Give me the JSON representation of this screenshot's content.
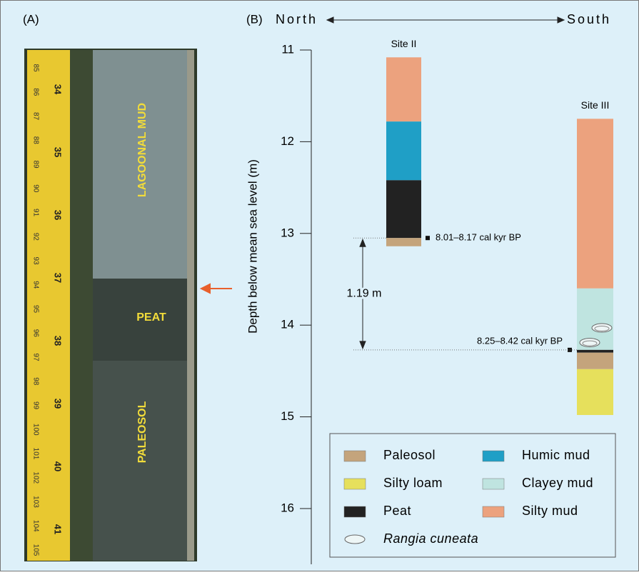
{
  "panel_a": {
    "label": "(A)",
    "tape_inch_labels": [
      "34",
      "35",
      "36",
      "37",
      "38",
      "39",
      "40",
      "41"
    ],
    "tape_cm_labels": [
      "85",
      "86",
      "87",
      "88",
      "89",
      "90",
      "91",
      "92",
      "93",
      "94",
      "95",
      "96",
      "97",
      "98",
      "99",
      "100",
      "101",
      "102",
      "103",
      "104",
      "105"
    ],
    "units": [
      "LAGOONAL MUD",
      "PEAT",
      "PALEOSOL"
    ]
  },
  "panel_b": {
    "label": "(B)",
    "north": "North",
    "south": "South",
    "y_axis": {
      "label": "Depth below mean sea level (m)",
      "ylim": [
        11,
        16.6
      ],
      "yticks": [
        11,
        12,
        13,
        14,
        15,
        16
      ]
    },
    "sites": [
      {
        "name": "Site II",
        "layers": [
          {
            "unit": "Silty mud",
            "top": 11.08,
            "bottom": 11.78
          },
          {
            "unit": "Humic mud",
            "top": 11.78,
            "bottom": 12.42
          },
          {
            "unit": "Peat",
            "top": 12.42,
            "bottom": 13.05
          },
          {
            "unit": "Paleosol",
            "top": 13.05,
            "bottom": 13.14
          }
        ],
        "date": {
          "label": "8.01–8.17 cal kyr BP",
          "depth": 13.05
        }
      },
      {
        "name": "Site III",
        "layers": [
          {
            "unit": "Silty mud",
            "top": 11.75,
            "bottom": 13.6
          },
          {
            "unit": "Clayey mud",
            "top": 13.6,
            "bottom": 14.27
          },
          {
            "unit": "Peat",
            "top": 14.27,
            "bottom": 14.3
          },
          {
            "unit": "Paleosol",
            "top": 14.3,
            "bottom": 14.48
          },
          {
            "unit": "Silty loam",
            "top": 14.48,
            "bottom": 14.98
          }
        ],
        "date": {
          "label": "8.25–8.42 cal kyr BP",
          "depth": 14.27
        },
        "shells": [
          {
            "depth": 14.03
          },
          {
            "depth": 14.19
          }
        ]
      }
    ],
    "gap_label": "1.19 m",
    "legend": [
      {
        "name": "Paleosol",
        "color": "#c4a47c"
      },
      {
        "name": "Silty loam",
        "color": "#e6e05c"
      },
      {
        "name": "Peat",
        "color": "#222222"
      },
      {
        "name": "Humic mud",
        "color": "#1f9fc6"
      },
      {
        "name": "Clayey mud",
        "color": "#bfe4e0"
      },
      {
        "name": "Silty mud",
        "color": "#eca27e"
      },
      {
        "name": "Rangia cuneata"
      }
    ]
  }
}
